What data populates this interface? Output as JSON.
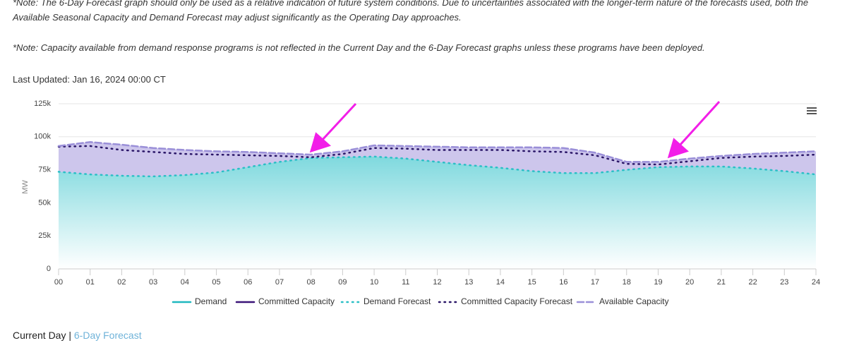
{
  "notes": [
    "*Note: The 6-Day Forecast graph should only be used as a relative indication of future system conditions. Due to uncertainties associated with the longer-term nature of the forecasts used, both the Available Seasonal Capacity and Demand Forecast may adjust significantly as the Operating Day approaches.",
    "*Note: Capacity available from demand response programs is not reflected in the Current Day and the 6-Day Forecast graphs unless these programs have been deployed."
  ],
  "last_updated": "Last Updated: Jan 16, 2024 00:00 CT",
  "tabs": {
    "current": "Current Day",
    "separator": "|",
    "forecast": "6-Day Forecast"
  },
  "chart_data": {
    "type": "line",
    "y_label": "MW",
    "x": [
      0,
      1,
      2,
      3,
      4,
      5,
      6,
      7,
      8,
      9,
      10,
      11,
      12,
      13,
      14,
      15,
      16,
      17,
      18,
      19,
      20,
      21,
      22,
      23,
      24
    ],
    "xlim": [
      0,
      24
    ],
    "xticks": [
      {
        "value": 0,
        "label": "00"
      },
      {
        "value": 1,
        "label": "01"
      },
      {
        "value": 2,
        "label": "02"
      },
      {
        "value": 3,
        "label": "03"
      },
      {
        "value": 4,
        "label": "04"
      },
      {
        "value": 5,
        "label": "05"
      },
      {
        "value": 6,
        "label": "06"
      },
      {
        "value": 7,
        "label": "07"
      },
      {
        "value": 8,
        "label": "08"
      },
      {
        "value": 9,
        "label": "09"
      },
      10,
      11,
      12,
      13,
      14,
      15,
      16,
      17,
      18,
      19,
      20,
      21,
      22,
      23,
      24
    ],
    "ylim": [
      0,
      125000
    ],
    "yticks": [
      0,
      {
        "value": 25000,
        "label": "25k"
      },
      {
        "value": 50000,
        "label": "50k"
      },
      {
        "value": 75000,
        "label": "75k"
      },
      {
        "value": 100000,
        "label": "100k"
      },
      {
        "value": 125000,
        "label": "125k"
      }
    ],
    "grid": true,
    "legend": "bottom",
    "series": [
      {
        "name": "Demand",
        "color": "#1fb8bf",
        "style": "solid",
        "values": [
          null,
          null,
          null,
          null,
          null,
          null,
          null,
          null,
          null,
          null,
          null,
          null,
          null,
          null,
          null,
          null,
          null,
          null,
          null,
          null,
          null,
          null,
          null,
          null,
          null
        ]
      },
      {
        "name": "Committed Capacity",
        "color": "#3a1478",
        "style": "solid",
        "values": [
          null,
          null,
          null,
          null,
          null,
          null,
          null,
          null,
          null,
          null,
          null,
          null,
          null,
          null,
          null,
          null,
          null,
          null,
          null,
          null,
          null,
          null,
          null,
          null,
          null
        ]
      },
      {
        "name": "Demand Forecast",
        "color": "#2bbfc6",
        "style": "dotted",
        "fill": "teal",
        "values": [
          73500,
          71500,
          70500,
          70000,
          71000,
          73000,
          77000,
          81000,
          84000,
          84500,
          85000,
          83500,
          81000,
          78500,
          76500,
          74000,
          72500,
          72500,
          75000,
          77000,
          77500,
          77500,
          76000,
          74000,
          71500
        ]
      },
      {
        "name": "Committed Capacity Forecast",
        "color": "#2a1668",
        "style": "dotted",
        "values": [
          92500,
          93000,
          90000,
          88500,
          87000,
          86500,
          86000,
          85500,
          84500,
          87000,
          91500,
          91000,
          90000,
          90000,
          90000,
          89000,
          88500,
          86000,
          79500,
          79000,
          81500,
          84000,
          85000,
          85500,
          86500
        ]
      },
      {
        "name": "Available Capacity",
        "color": "#9a8fd8",
        "style": "dashed",
        "fill": "lavender",
        "values": [
          93000,
          96000,
          94000,
          91500,
          90000,
          89000,
          88500,
          87500,
          86500,
          89000,
          93500,
          93000,
          92500,
          92000,
          92000,
          92000,
          91500,
          88000,
          81000,
          81000,
          83500,
          85500,
          87000,
          88000,
          89000
        ]
      }
    ]
  }
}
